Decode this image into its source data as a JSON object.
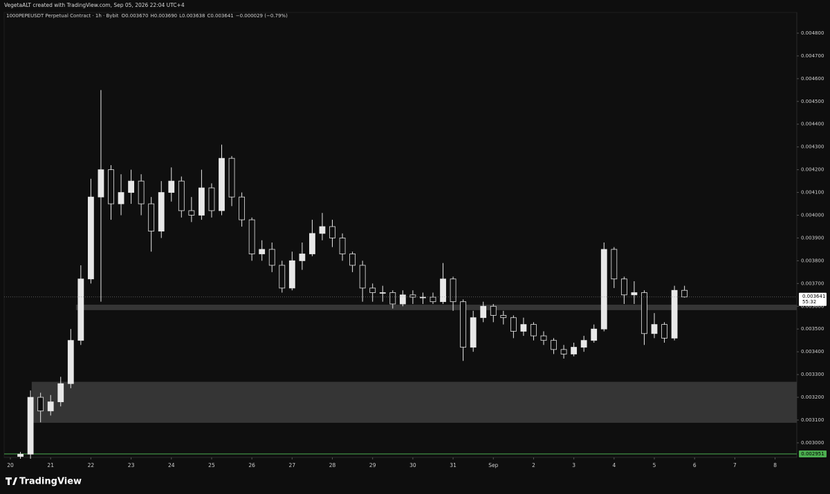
{
  "chart_data": {
    "type": "candlestick",
    "watermark": "VegetaALT created with TradingView.com, Sep 05, 2026 22:04 UTC+4",
    "symbol": "1000PEPEUSDT Perpetual Contract · 1h · Bybit",
    "ohlc_legend": [
      {
        "key": "O",
        "value": "0.003670"
      },
      {
        "key": "H",
        "value": "0.003690"
      },
      {
        "key": "L",
        "value": "0.003638"
      },
      {
        "key": "C",
        "value": "0.003641"
      }
    ],
    "change": "−0.000029 (−0.79%)",
    "brand": "TradingView",
    "color": "#e8e8e8",
    "xlim": [
      -0.155,
      19.54
    ],
    "xticks": [
      {
        "value": 0,
        "label": "20"
      },
      {
        "value": 1,
        "label": "21"
      },
      {
        "value": 2,
        "label": "22"
      },
      {
        "value": 3,
        "label": "23"
      },
      {
        "value": 4,
        "label": "24"
      },
      {
        "value": 5,
        "label": "25"
      },
      {
        "value": 6,
        "label": "26"
      },
      {
        "value": 7,
        "label": "27"
      },
      {
        "value": 8,
        "label": "28"
      },
      {
        "value": 9,
        "label": "29"
      },
      {
        "value": 10,
        "label": "30"
      },
      {
        "value": 11,
        "label": "31"
      },
      {
        "value": 12,
        "label": "Sep"
      },
      {
        "value": 13,
        "label": "2"
      },
      {
        "value": 14,
        "label": "3"
      },
      {
        "value": 15,
        "label": "4"
      },
      {
        "value": 16,
        "label": "5"
      },
      {
        "value": 17,
        "label": "6"
      },
      {
        "value": 18,
        "label": "7"
      },
      {
        "value": 19,
        "label": "8"
      }
    ],
    "ylim": [
      0.002936,
      0.004891
    ],
    "yticks": [
      {
        "value": 0.003,
        "label": "0.003000"
      },
      {
        "value": 0.0031,
        "label": "0.003100"
      },
      {
        "value": 0.0032,
        "label": "0.003200"
      },
      {
        "value": 0.0033,
        "label": "0.003300"
      },
      {
        "value": 0.0034,
        "label": "0.003400"
      },
      {
        "value": 0.0035,
        "label": "0.003500"
      },
      {
        "value": 0.0036,
        "label": "0.003600"
      },
      {
        "value": 0.0037,
        "label": "0.003700"
      },
      {
        "value": 0.0038,
        "label": "0.003800"
      },
      {
        "value": 0.0039,
        "label": "0.003900"
      },
      {
        "value": 0.004,
        "label": "0.004000"
      },
      {
        "value": 0.0041,
        "label": "0.004100"
      },
      {
        "value": 0.0042,
        "label": "0.004200"
      },
      {
        "value": 0.0043,
        "label": "0.004300"
      },
      {
        "value": 0.0044,
        "label": "0.004400"
      },
      {
        "value": 0.0045,
        "label": "0.004500"
      },
      {
        "value": 0.0046,
        "label": "0.004600"
      },
      {
        "value": 0.0047,
        "label": "0.004700"
      },
      {
        "value": 0.0048,
        "label": "0.004800"
      }
    ],
    "zones": [
      {
        "from": 0.003088,
        "to": 0.003268,
        "x_start": 0.53,
        "color": "#3a3a3a"
      },
      {
        "from": 0.003583,
        "to": 0.003607,
        "x_start": 1.63,
        "color": "#3a3a3a"
      }
    ],
    "level_line": {
      "value": 0.002951,
      "label": "0.002951",
      "color": "#4caf50"
    },
    "last_price": {
      "value": 0.003641,
      "label": "0.003641",
      "countdown": "55:32"
    },
    "candles": {
      "x": [
        0.25,
        0.5,
        0.75,
        1,
        1.25,
        1.5,
        1.75,
        2,
        2.25,
        2.5,
        2.75,
        3,
        3.25,
        3.5,
        3.75,
        4,
        4.25,
        4.5,
        4.75,
        5,
        5.25,
        5.5,
        5.75,
        6,
        6.25,
        6.5,
        6.75,
        7,
        7.25,
        7.5,
        7.75,
        8,
        8.25,
        8.5,
        8.75,
        9,
        9.25,
        9.5,
        9.75,
        10,
        10.25,
        10.5,
        10.75,
        11,
        11.25,
        11.5,
        11.75,
        12,
        12.25,
        12.5,
        12.75,
        13,
        13.25,
        13.5,
        13.75,
        14,
        14.25,
        14.5,
        14.75,
        15,
        15.25,
        15.5,
        15.75,
        16,
        16.25,
        16.5,
        16.75
      ],
      "open": [
        0.00294,
        0.00295,
        0.0032,
        0.00314,
        0.00318,
        0.00326,
        0.00345,
        0.00372,
        0.00408,
        0.0042,
        0.00405,
        0.0041,
        0.00415,
        0.00405,
        0.00393,
        0.0041,
        0.00415,
        0.00402,
        0.004,
        0.00412,
        0.00402,
        0.00425,
        0.00408,
        0.00398,
        0.00383,
        0.00385,
        0.00378,
        0.00368,
        0.0038,
        0.00383,
        0.00392,
        0.00395,
        0.0039,
        0.00383,
        0.00378,
        0.00368,
        0.00366,
        0.00366,
        0.00361,
        0.00365,
        0.00364,
        0.00364,
        0.00362,
        0.00372,
        0.00362,
        0.00342,
        0.00355,
        0.0036,
        0.00356,
        0.00355,
        0.00349,
        0.00352,
        0.00347,
        0.00345,
        0.00341,
        0.00339,
        0.00342,
        0.00345,
        0.0035,
        0.00385,
        0.00372,
        0.00365,
        0.00366,
        0.00348,
        0.00352,
        0.00346,
        0.00367
      ],
      "high": [
        0.00296,
        0.00323,
        0.00322,
        0.00321,
        0.00329,
        0.0035,
        0.00378,
        0.00416,
        0.00455,
        0.00422,
        0.00418,
        0.0042,
        0.00418,
        0.00408,
        0.00415,
        0.00421,
        0.00417,
        0.00408,
        0.0042,
        0.00414,
        0.00431,
        0.00426,
        0.0041,
        0.00399,
        0.00389,
        0.00388,
        0.0038,
        0.00384,
        0.00388,
        0.00398,
        0.00401,
        0.00398,
        0.00392,
        0.00384,
        0.0038,
        0.0037,
        0.00369,
        0.00367,
        0.00367,
        0.00367,
        0.00366,
        0.00366,
        0.00379,
        0.00373,
        0.00363,
        0.00358,
        0.00362,
        0.00361,
        0.00358,
        0.00356,
        0.00355,
        0.00353,
        0.00349,
        0.00346,
        0.00343,
        0.00344,
        0.00347,
        0.00352,
        0.00388,
        0.00386,
        0.00373,
        0.00371,
        0.00367,
        0.00357,
        0.00353,
        0.00369,
        0.00369
      ],
      "low": [
        0.00293,
        0.00293,
        0.00309,
        0.00312,
        0.00316,
        0.00324,
        0.00343,
        0.0037,
        0.00362,
        0.00398,
        0.004,
        0.00405,
        0.004,
        0.00384,
        0.0039,
        0.00406,
        0.00399,
        0.00397,
        0.00398,
        0.00399,
        0.004,
        0.00404,
        0.00395,
        0.0038,
        0.0038,
        0.00375,
        0.00366,
        0.00367,
        0.00376,
        0.00382,
        0.00389,
        0.00386,
        0.0038,
        0.00375,
        0.00362,
        0.00362,
        0.00362,
        0.00359,
        0.0036,
        0.00361,
        0.00361,
        0.00361,
        0.00361,
        0.00358,
        0.00336,
        0.0034,
        0.00353,
        0.00353,
        0.00352,
        0.00346,
        0.00347,
        0.00345,
        0.00343,
        0.00339,
        0.00337,
        0.00338,
        0.0034,
        0.00344,
        0.00349,
        0.00368,
        0.00361,
        0.00361,
        0.00343,
        0.00346,
        0.00344,
        0.00345,
        0.003638
      ],
      "close": [
        0.00295,
        0.0032,
        0.00314,
        0.00318,
        0.00326,
        0.00345,
        0.00372,
        0.00408,
        0.0042,
        0.00405,
        0.0041,
        0.00415,
        0.00405,
        0.00393,
        0.0041,
        0.00415,
        0.00402,
        0.004,
        0.00412,
        0.00402,
        0.00425,
        0.00408,
        0.00398,
        0.00383,
        0.00385,
        0.00378,
        0.00368,
        0.0038,
        0.00383,
        0.00392,
        0.00395,
        0.0039,
        0.00383,
        0.00378,
        0.00368,
        0.00366,
        0.00366,
        0.00361,
        0.00365,
        0.00364,
        0.00364,
        0.00362,
        0.00372,
        0.00362,
        0.00342,
        0.00355,
        0.0036,
        0.00356,
        0.00355,
        0.00349,
        0.00352,
        0.00347,
        0.00345,
        0.00341,
        0.00339,
        0.00342,
        0.00345,
        0.0035,
        0.00385,
        0.00372,
        0.00365,
        0.00366,
        0.00348,
        0.00352,
        0.00346,
        0.00367,
        0.003641
      ]
    }
  }
}
